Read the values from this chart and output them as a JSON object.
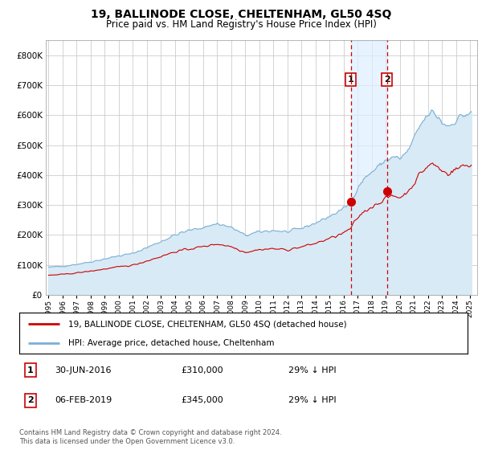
{
  "title": "19, BALLINODE CLOSE, CHELTENHAM, GL50 4SQ",
  "subtitle": "Price paid vs. HM Land Registry's House Price Index (HPI)",
  "legend_label_red": "19, BALLINODE CLOSE, CHELTENHAM, GL50 4SQ (detached house)",
  "legend_label_blue": "HPI: Average price, detached house, Cheltenham",
  "annotation1_date": "30-JUN-2016",
  "annotation1_price": "£310,000",
  "annotation1_hpi": "29% ↓ HPI",
  "annotation1_year": 2016.5,
  "annotation1_value": 310000,
  "annotation2_date": "06-FEB-2019",
  "annotation2_price": "£345,000",
  "annotation2_hpi": "29% ↓ HPI",
  "annotation2_year": 2019.08,
  "annotation2_value": 345000,
  "ylim": [
    0,
    850000
  ],
  "yticks": [
    0,
    100000,
    200000,
    300000,
    400000,
    500000,
    600000,
    700000,
    800000
  ],
  "xlim_start": 1994.8,
  "xlim_end": 2025.5,
  "background_color": "#ffffff",
  "plot_bg_color": "#ffffff",
  "grid_color": "#cccccc",
  "red_color": "#cc0000",
  "blue_color": "#7aafd4",
  "blue_fill_color": "#d8eaf5",
  "ann_fill_color": "#ddeeff",
  "footer": "Contains HM Land Registry data © Crown copyright and database right 2024.\nThis data is licensed under the Open Government Licence v3.0."
}
